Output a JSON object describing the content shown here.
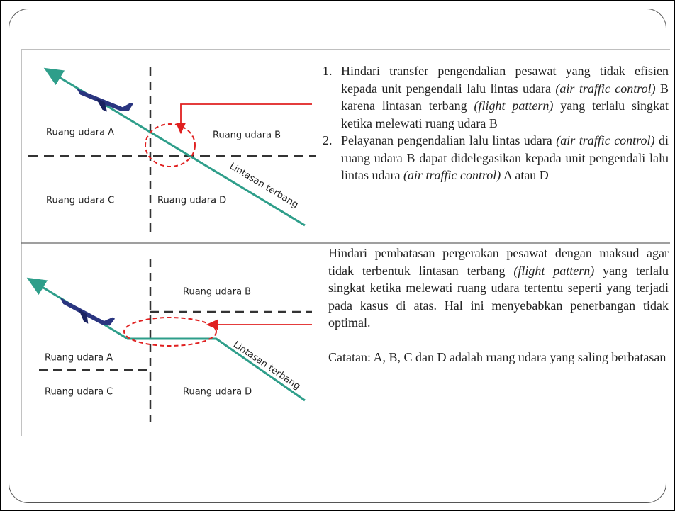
{
  "top": {
    "labels": {
      "a": "Ruang udara A",
      "b": "Ruang udara B",
      "c": "Ruang udara C",
      "d": "Ruang udara D",
      "path": "Lintasan terbang"
    },
    "list": [
      {
        "number": "1.",
        "parts": [
          {
            "text": "Hindari transfer pengendalian pesawat yang tidak efisien kepada unit pengendali lalu lintas udara ",
            "italic": false
          },
          {
            "text": "(air traffic control)",
            "italic": true
          },
          {
            "text": " B karena lintasan terbang ",
            "italic": false
          },
          {
            "text": "(flight pattern)",
            "italic": true
          },
          {
            "text": " yang terlalu singkat ketika melewati ruang udara B",
            "italic": false
          }
        ]
      },
      {
        "number": "2.",
        "parts": [
          {
            "text": "Pelayanan pengendalian lalu lintas udara ",
            "italic": false
          },
          {
            "text": "(air traffic control)",
            "italic": true
          },
          {
            "text": " di ruang udara B dapat didelegasikan kepada unit pengendali lalu lintas udara ",
            "italic": false
          },
          {
            "text": "(air traffic control)",
            "italic": true
          },
          {
            "text": " A atau D",
            "italic": false
          }
        ]
      }
    ]
  },
  "bottom": {
    "labels": {
      "a": "Ruang udara A",
      "b": "Ruang udara B",
      "c": "Ruang udara C",
      "d": "Ruang udara D",
      "path": "Lintasan terbang"
    },
    "paragraph": [
      {
        "text": "Hindari pembatasan pergerakan pesawat dengan maksud agar tidak terbentuk lintasan terbang ",
        "italic": false
      },
      {
        "text": "(flight pattern)",
        "italic": true
      },
      {
        "text": " yang terlalu singkat ketika melewati ruang udara tertentu seperti yang terjadi pada kasus di atas. Hal ini menyebabkan penerbangan tidak optimal.",
        "italic": false
      }
    ],
    "note": "Catatan: A, B, C dan D adalah ruang udara yang saling berbatasan"
  }
}
